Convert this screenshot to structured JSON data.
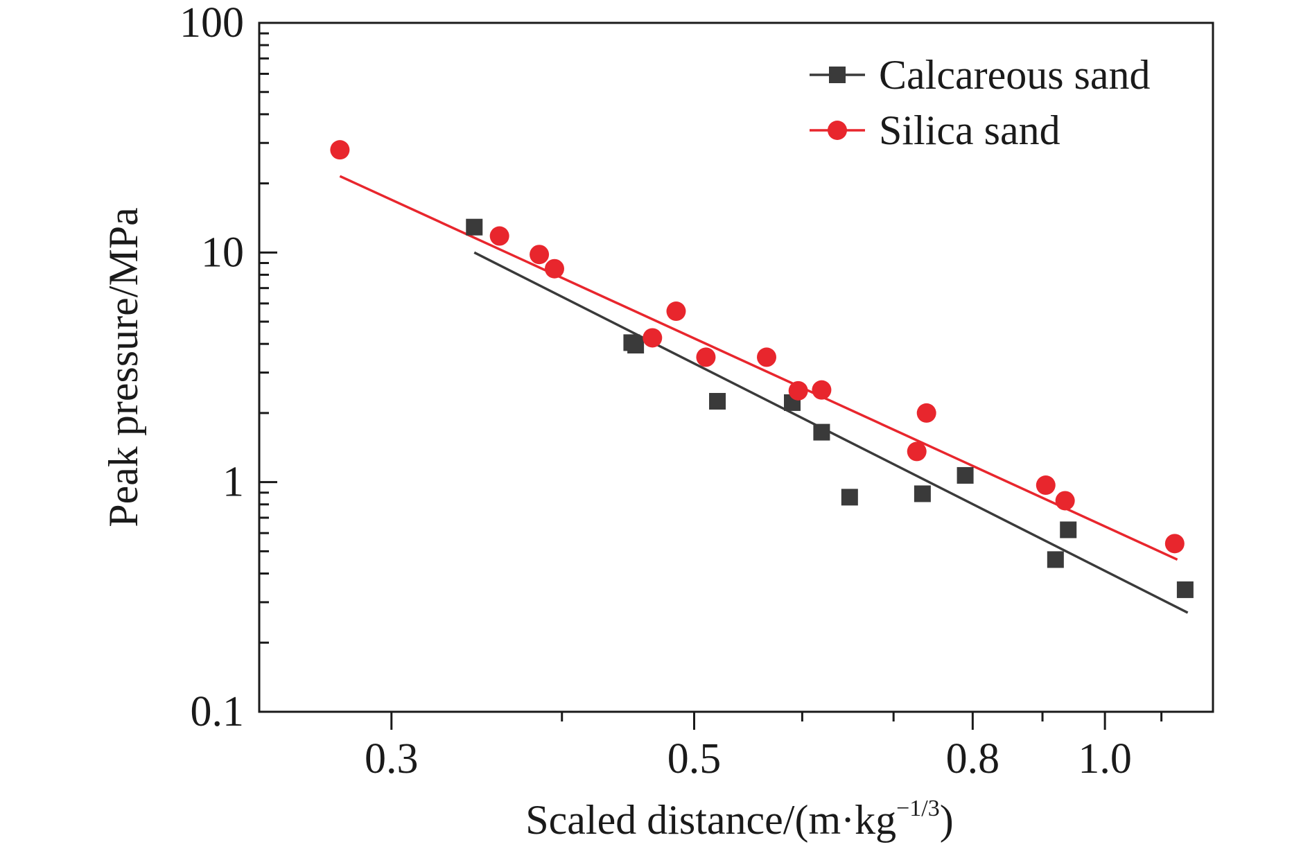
{
  "chart_data": {
    "type": "scatter",
    "xlabel": "Scaled distance/(m·kg",
    "xlabel_sup": "−1/3",
    "xlabel_end": ")",
    "ylabel": "Peak pressure/MPa",
    "x_scale": "log",
    "y_scale": "log",
    "xlim": [
      0.24,
      1.2
    ],
    "ylim": [
      0.1,
      100
    ],
    "x_ticks": [
      0.3,
      0.5,
      0.8,
      1.0
    ],
    "x_tick_labels": [
      "0.3",
      "0.5",
      "0.8",
      "1.0"
    ],
    "x_minor_ticks": [
      0.4,
      0.6,
      0.7,
      0.9,
      1.1
    ],
    "y_ticks": [
      0.1,
      1,
      10,
      100
    ],
    "y_tick_labels": [
      "0.1",
      "1",
      "10",
      "100"
    ],
    "grid": false,
    "legend_position": "top-right",
    "series": [
      {
        "name": "Calcareous sand",
        "color": "#3a3a3a",
        "marker": "square",
        "x": [
          0.345,
          0.45,
          0.453,
          0.52,
          0.59,
          0.62,
          0.65,
          0.735,
          0.79,
          0.92,
          0.94,
          1.145
        ],
        "y": [
          12.9,
          4.05,
          3.95,
          2.25,
          2.22,
          1.65,
          0.86,
          0.89,
          1.07,
          0.46,
          0.62,
          0.34
        ],
        "fit": {
          "x": [
            0.345,
            1.15
          ],
          "y": [
            10.0,
            0.27
          ]
        }
      },
      {
        "name": "Silica sand",
        "color": "#e8262d",
        "marker": "circle",
        "x": [
          0.275,
          0.36,
          0.385,
          0.395,
          0.466,
          0.485,
          0.51,
          0.565,
          0.596,
          0.62,
          0.728,
          0.74,
          0.905,
          0.935,
          1.125
        ],
        "y": [
          28.0,
          11.8,
          9.8,
          8.5,
          4.25,
          5.55,
          3.5,
          3.5,
          2.5,
          2.52,
          1.36,
          2.0,
          0.97,
          0.83,
          0.54
        ],
        "fit": {
          "x": [
            0.275,
            1.13
          ],
          "y": [
            21.5,
            0.46
          ]
        }
      }
    ]
  }
}
